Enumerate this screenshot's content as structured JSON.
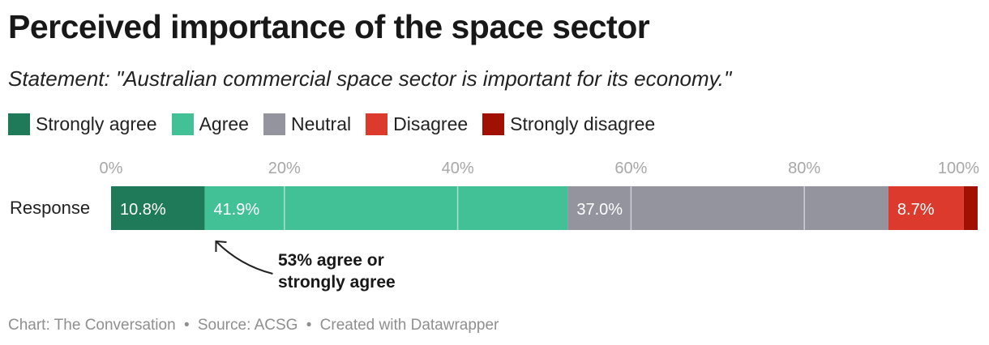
{
  "title": "Perceived importance of the space sector",
  "subtitle": "Statement: \"Australian commercial space sector is important for its economy.\"",
  "legend": [
    {
      "label": "Strongly agree",
      "color": "#1f7a5a"
    },
    {
      "label": "Agree",
      "color": "#41c195"
    },
    {
      "label": "Neutral",
      "color": "#94949f"
    },
    {
      "label": "Disagree",
      "color": "#db3a2d"
    },
    {
      "label": "Strongly disagree",
      "color": "#a01104"
    }
  ],
  "chart_data": {
    "type": "bar",
    "orientation": "horizontal-stacked",
    "categories": [
      "Response"
    ],
    "series": [
      {
        "name": "Strongly agree",
        "values": [
          10.8
        ],
        "label": "10.8%",
        "color": "#1f7a5a"
      },
      {
        "name": "Agree",
        "values": [
          41.9
        ],
        "label": "41.9%",
        "color": "#41c195"
      },
      {
        "name": "Neutral",
        "values": [
          37.0
        ],
        "label": "37.0%",
        "color": "#94949f"
      },
      {
        "name": "Disagree",
        "values": [
          8.7
        ],
        "label": "8.7%",
        "color": "#db3a2d"
      },
      {
        "name": "Strongly disagree",
        "values": [
          1.6
        ],
        "label": "",
        "color": "#a01104"
      }
    ],
    "xlim": [
      0,
      100
    ],
    "xticks": [
      0,
      20,
      40,
      60,
      80,
      100
    ],
    "xtick_labels": [
      "0%",
      "20%",
      "40%",
      "60%",
      "80%",
      "100%"
    ],
    "grid": true,
    "annotation": {
      "lines": [
        "53% agree or",
        "strongly agree"
      ],
      "target_value": 10.8
    }
  },
  "footer": {
    "chart": "Chart: The Conversation",
    "source": "Source: ACSG",
    "created": "Created with Datawrapper",
    "separator": "•"
  }
}
